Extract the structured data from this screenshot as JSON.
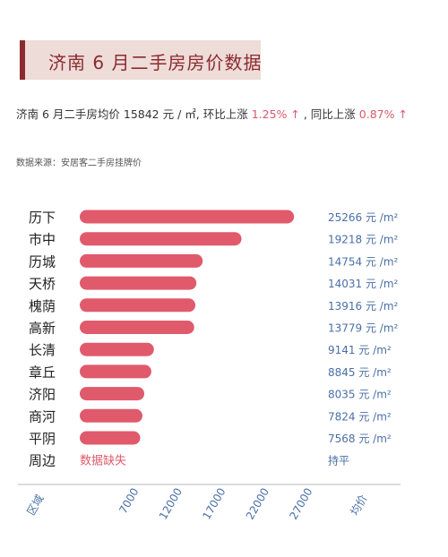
{
  "header": {
    "title": "济南 6 月二手房房价数据"
  },
  "summary": {
    "prefix": "济南 6 月二手房均价 15842 元 / ㎡, 环比上涨 ",
    "mom_value": "1.25% ↑",
    "mid": " , 同比上涨 ",
    "yoy_value": "0.87% ↑"
  },
  "source": "数据来源：安居客二手房挂牌价",
  "colors": {
    "bar": "#e05a6c",
    "axis_label": "#4a6fa5",
    "value_label": "#4a6fa5",
    "title_accent": "#8c2a2f"
  },
  "chart_data": {
    "type": "bar",
    "orientation": "horizontal",
    "categories": [
      "历下",
      "市中",
      "历城",
      "天桥",
      "槐荫",
      "高新",
      "长清",
      "章丘",
      "济阳",
      "商河",
      "平阴",
      "周边"
    ],
    "values": [
      25266,
      19218,
      14754,
      14031,
      13916,
      13779,
      9141,
      8845,
      8035,
      7824,
      7568,
      null
    ],
    "value_labels": [
      "25266 元 /m²",
      "19218 元 /m²",
      "14754 元 /m²",
      "14031 元 /m²",
      "13916 元 /m²",
      "13779 元 /m²",
      "9141 元 /m²",
      "8845 元 /m²",
      "8035 元 /m²",
      "7824 元 /m²",
      "7568 元 /m²",
      "持平"
    ],
    "missing_label": "数据缺失",
    "xlabel": "区域",
    "ylabel": "均价",
    "ticks": [
      7000,
      12000,
      17000,
      22000,
      27000
    ],
    "tick_labels": [
      "7000",
      "12000",
      "17000",
      "22000",
      "27000"
    ],
    "grid": false
  }
}
